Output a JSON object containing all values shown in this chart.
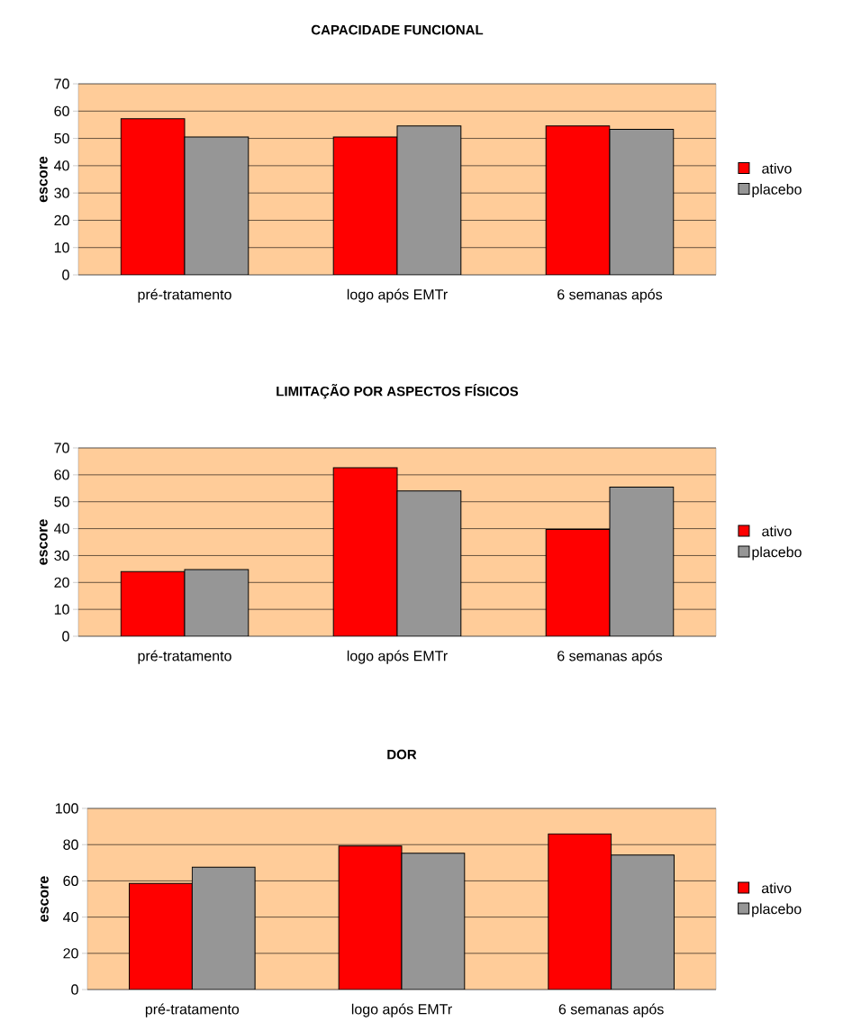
{
  "chart_data": [
    {
      "type": "bar",
      "title": "CAPACIDADE FUNCIONAL",
      "ylabel": "escore",
      "categories": [
        "pré-tratamento",
        "logo após EMTr",
        "6 semanas após"
      ],
      "series": [
        {
          "name": "ativo",
          "color": "#ff0000",
          "values": [
            57.2,
            50.5,
            54.6
          ]
        },
        {
          "name": "placebo",
          "color": "#969696",
          "values": [
            50.5,
            54.6,
            53.3
          ]
        }
      ],
      "ylim": [
        0,
        70
      ],
      "yticks": [
        0,
        10,
        20,
        30,
        40,
        50,
        60,
        70
      ],
      "grid": "y",
      "legend": "right"
    },
    {
      "type": "bar",
      "title": "LIMITAÇÃO POR ASPECTOS FÍSICOS",
      "ylabel": "escore",
      "categories": [
        "pré-tratamento",
        "logo após EMTr",
        "6 semanas após"
      ],
      "series": [
        {
          "name": "ativo",
          "color": "#ff0000",
          "values": [
            24.0,
            62.6,
            39.7
          ]
        },
        {
          "name": "placebo",
          "color": "#969696",
          "values": [
            24.8,
            54.0,
            55.4
          ]
        }
      ],
      "ylim": [
        0,
        70
      ],
      "yticks": [
        0,
        10,
        20,
        30,
        40,
        50,
        60,
        70
      ],
      "grid": "y",
      "legend": "right"
    },
    {
      "type": "bar",
      "title": "DOR",
      "ylabel": "escore",
      "categories": [
        "pré-tratamento",
        "logo após EMTr",
        "6 semanas após"
      ],
      "series": [
        {
          "name": "ativo",
          "color": "#ff0000",
          "values": [
            58.6,
            79.2,
            86.0
          ]
        },
        {
          "name": "placebo",
          "color": "#969696",
          "values": [
            67.5,
            75.3,
            74.2
          ]
        }
      ],
      "ylim": [
        0,
        100
      ],
      "yticks": [
        0,
        20,
        40,
        60,
        80,
        100
      ],
      "grid": "y",
      "legend": "right"
    }
  ]
}
